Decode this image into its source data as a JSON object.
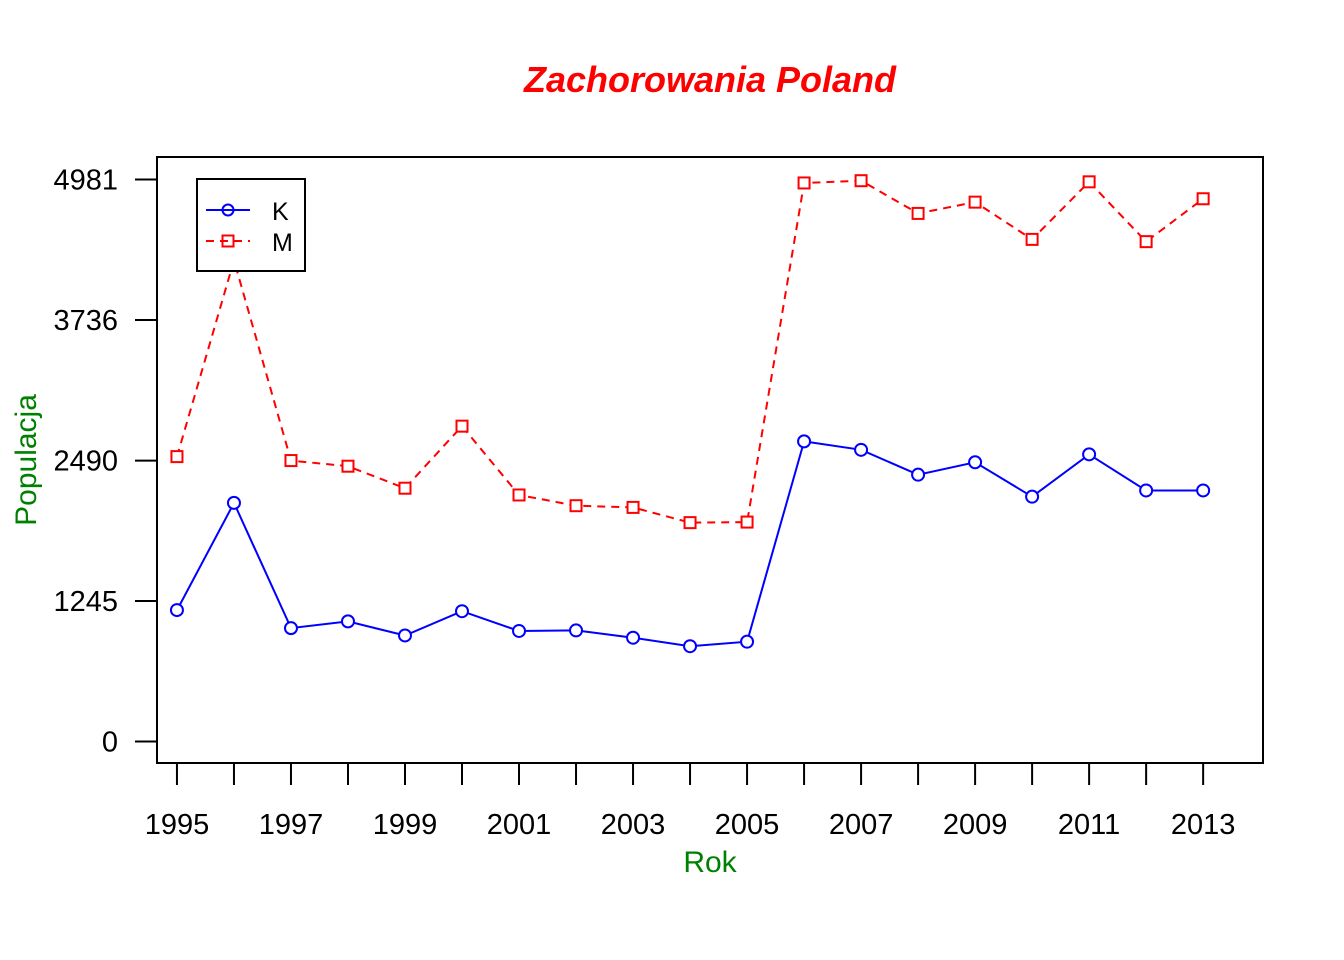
{
  "chart_data": {
    "type": "line",
    "title": "Zachorowania Poland",
    "xlabel": "Rok",
    "ylabel": "Populacja",
    "x": [
      1995,
      1996,
      1997,
      1998,
      1999,
      2000,
      2001,
      2002,
      2003,
      2004,
      2005,
      2006,
      2007,
      2008,
      2009,
      2010,
      2011,
      2012,
      2013
    ],
    "x_tick_labels": [
      "1995",
      "1997",
      "1999",
      "2001",
      "2003",
      "2005",
      "2007",
      "2009",
      "2011",
      "2013"
    ],
    "y_ticks": [
      0,
      1245,
      2490,
      3736,
      4981
    ],
    "y_tick_labels": [
      "0",
      "1245",
      "2490",
      "3736",
      "4981"
    ],
    "xlim": [
      1994.65,
      2014.05
    ],
    "ylim": [
      -190,
      5180
    ],
    "grid": false,
    "legend_position": "top-left",
    "series": [
      {
        "name": "K",
        "color": "#0000ff",
        "line_style": "solid",
        "marker": "circle",
        "values": [
          1165,
          2115,
          1005,
          1065,
          940,
          1155,
          980,
          985,
          920,
          845,
          885,
          2660,
          2585,
          2365,
          2475,
          2170,
          2545,
          2225,
          2225
        ]
      },
      {
        "name": "M",
        "color": "#ff0000",
        "line_style": "dashed",
        "marker": "square",
        "values": [
          2525,
          4265,
          2490,
          2440,
          2245,
          2795,
          2185,
          2090,
          2075,
          1940,
          1945,
          4950,
          4970,
          4680,
          4780,
          4450,
          4960,
          4430,
          4810
        ]
      }
    ]
  }
}
